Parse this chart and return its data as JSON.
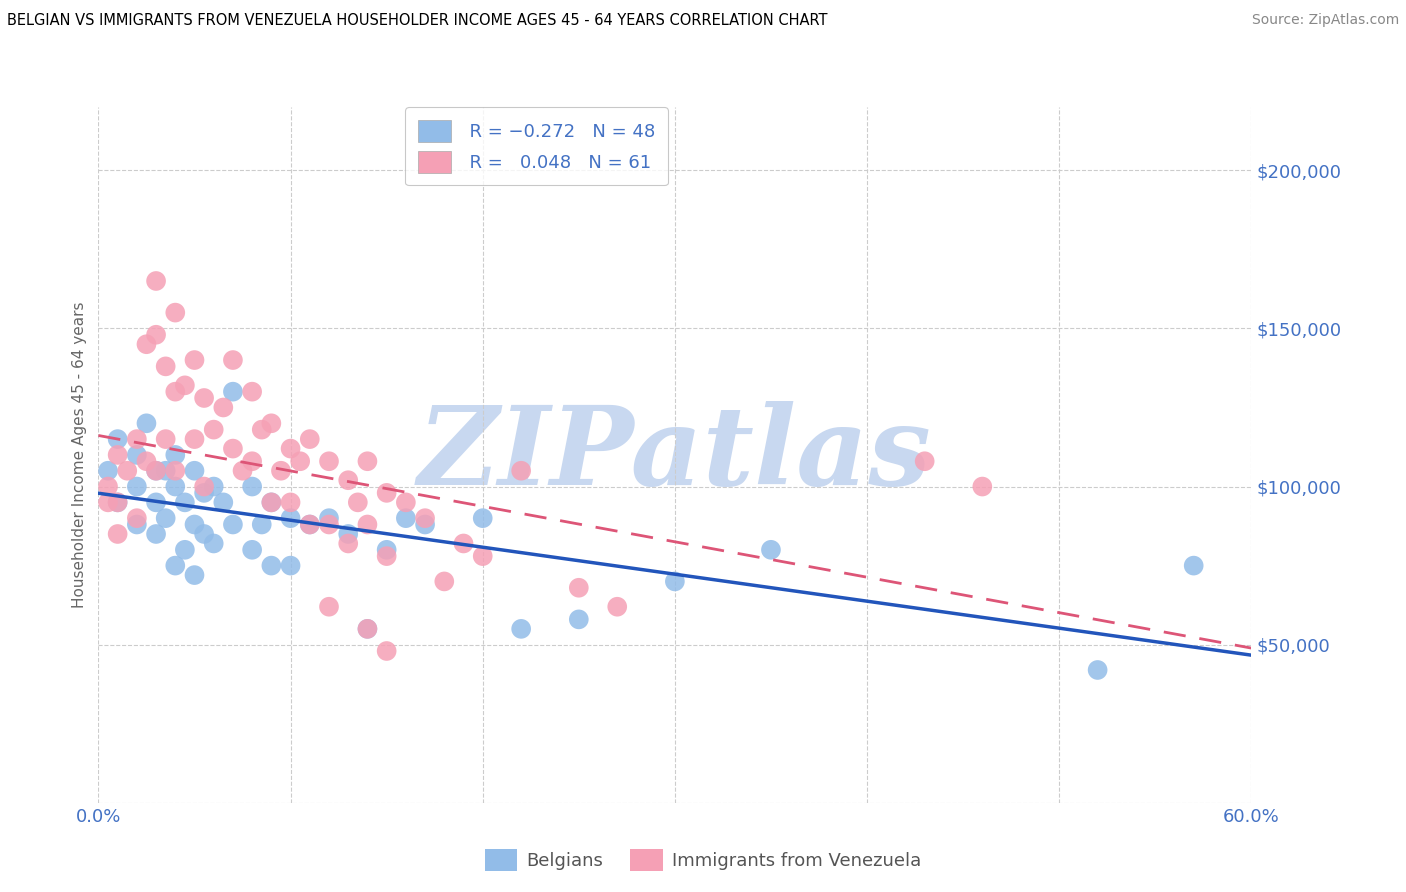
{
  "title": "BELGIAN VS IMMIGRANTS FROM VENEZUELA HOUSEHOLDER INCOME AGES 45 - 64 YEARS CORRELATION CHART",
  "source": "Source: ZipAtlas.com",
  "ylabel": "Householder Income Ages 45 - 64 years",
  "xlim": [
    0.0,
    0.6
  ],
  "ylim": [
    0,
    220000
  ],
  "yticks": [
    0,
    50000,
    100000,
    150000,
    200000
  ],
  "ytick_labels": [
    "",
    "$50,000",
    "$100,000",
    "$150,000",
    "$200,000"
  ],
  "xticks": [
    0.0,
    0.1,
    0.2,
    0.3,
    0.4,
    0.5,
    0.6
  ],
  "xtick_labels": [
    "0.0%",
    "",
    "",
    "",
    "",
    "",
    "60.0%"
  ],
  "belgian_color": "#92bce8",
  "venezuela_color": "#f5a0b5",
  "trend_blue_color": "#2255bb",
  "trend_pink_color": "#dd5577",
  "legend_label_blue": "Belgians",
  "legend_label_pink": "Immigrants from Venezuela",
  "watermark": "ZIPatlas",
  "watermark_color": "#c8d8f0",
  "background_color": "#ffffff",
  "grid_color": "#cccccc",
  "axis_color": "#4472c4",
  "title_color": "#000000",
  "belgians_x": [
    0.005,
    0.01,
    0.01,
    0.02,
    0.02,
    0.02,
    0.025,
    0.03,
    0.03,
    0.03,
    0.035,
    0.035,
    0.04,
    0.04,
    0.04,
    0.045,
    0.045,
    0.05,
    0.05,
    0.05,
    0.055,
    0.055,
    0.06,
    0.06,
    0.065,
    0.07,
    0.07,
    0.08,
    0.08,
    0.085,
    0.09,
    0.09,
    0.1,
    0.1,
    0.11,
    0.12,
    0.13,
    0.14,
    0.15,
    0.16,
    0.17,
    0.2,
    0.22,
    0.25,
    0.3,
    0.35,
    0.52,
    0.57
  ],
  "belgians_y": [
    105000,
    115000,
    95000,
    110000,
    100000,
    88000,
    120000,
    105000,
    95000,
    85000,
    105000,
    90000,
    110000,
    100000,
    75000,
    95000,
    80000,
    105000,
    88000,
    72000,
    98000,
    85000,
    100000,
    82000,
    95000,
    130000,
    88000,
    100000,
    80000,
    88000,
    95000,
    75000,
    90000,
    75000,
    88000,
    90000,
    85000,
    55000,
    80000,
    90000,
    88000,
    90000,
    55000,
    58000,
    70000,
    80000,
    42000,
    75000
  ],
  "venezuela_x": [
    0.005,
    0.005,
    0.01,
    0.01,
    0.01,
    0.015,
    0.02,
    0.02,
    0.025,
    0.025,
    0.03,
    0.03,
    0.03,
    0.035,
    0.035,
    0.04,
    0.04,
    0.04,
    0.045,
    0.05,
    0.05,
    0.055,
    0.055,
    0.06,
    0.065,
    0.07,
    0.07,
    0.075,
    0.08,
    0.08,
    0.085,
    0.09,
    0.09,
    0.095,
    0.1,
    0.1,
    0.105,
    0.11,
    0.11,
    0.12,
    0.12,
    0.13,
    0.13,
    0.135,
    0.14,
    0.14,
    0.15,
    0.15,
    0.16,
    0.17,
    0.18,
    0.19,
    0.2,
    0.22,
    0.14,
    0.25,
    0.27,
    0.15,
    0.43,
    0.46,
    0.12
  ],
  "venezuela_y": [
    100000,
    95000,
    110000,
    95000,
    85000,
    105000,
    115000,
    90000,
    145000,
    108000,
    165000,
    148000,
    105000,
    138000,
    115000,
    155000,
    130000,
    105000,
    132000,
    140000,
    115000,
    128000,
    100000,
    118000,
    125000,
    140000,
    112000,
    105000,
    130000,
    108000,
    118000,
    120000,
    95000,
    105000,
    112000,
    95000,
    108000,
    115000,
    88000,
    108000,
    88000,
    102000,
    82000,
    95000,
    108000,
    88000,
    98000,
    78000,
    95000,
    90000,
    70000,
    82000,
    78000,
    105000,
    55000,
    68000,
    62000,
    48000,
    108000,
    100000,
    62000
  ]
}
